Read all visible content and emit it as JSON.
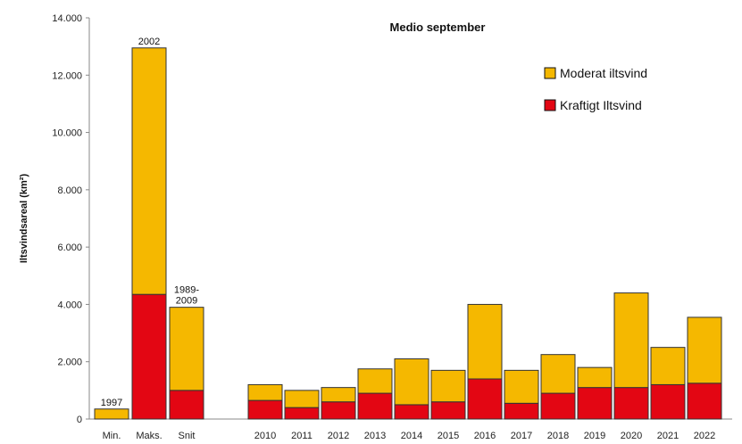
{
  "chart_data": {
    "type": "bar",
    "stacked": true,
    "title": "Medio september",
    "ylabel": "Iltsvindsareal (km²)",
    "xlabel": "",
    "ylim": [
      0,
      14000
    ],
    "yticks": [
      "0",
      "2.000",
      "4.000",
      "6.000",
      "8.000",
      "10.000",
      "12.000",
      "14.000"
    ],
    "grid": false,
    "legend_position": "top-right",
    "categories": [
      "Min.",
      "Maks.",
      "Snit",
      "2010",
      "2011",
      "2012",
      "2013",
      "2014",
      "2015",
      "2016",
      "2017",
      "2018",
      "2019",
      "2020",
      "2021",
      "2022"
    ],
    "series": [
      {
        "name": "Kraftigt Iltsvind",
        "color": "#e30613",
        "values": [
          0,
          4350,
          1000,
          650,
          400,
          600,
          900,
          500,
          600,
          1400,
          550,
          900,
          1100,
          1100,
          1200,
          1250
        ]
      },
      {
        "name": "Moderat iltsvind",
        "color": "#f5b800",
        "values": [
          350,
          8600,
          2900,
          550,
          600,
          500,
          850,
          1600,
          1100,
          2600,
          1150,
          1350,
          700,
          3300,
          1300,
          2300
        ]
      }
    ],
    "annotations": [
      {
        "category": "Min.",
        "text": "1997"
      },
      {
        "category": "Maks.",
        "text": "2002"
      },
      {
        "category": "Snit",
        "text": "1989-\n2009"
      }
    ]
  }
}
